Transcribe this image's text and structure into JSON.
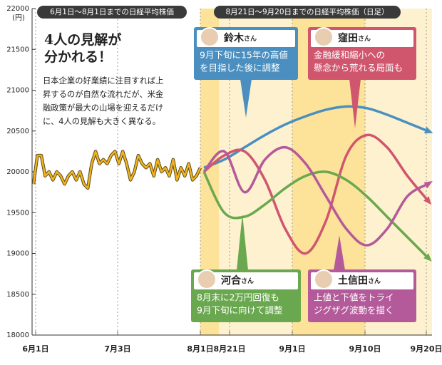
{
  "chart_data": {
    "type": "line",
    "y_unit": "(円)",
    "ylim": [
      18000,
      22000
    ],
    "yticks": [
      18000,
      18500,
      19000,
      19500,
      20000,
      20500,
      21000,
      21500,
      22000
    ],
    "xticks": [
      "6月1日",
      "7月3日",
      "8月1日",
      "8月21日",
      "9月1日",
      "9月10日",
      "9月20日"
    ],
    "header_left": "6月1日～8月1日までの日経平均株価",
    "header_right": "8月21日～9月20日までの日経平均株価（日足）",
    "title_lines": [
      "4人の見解が",
      "分かれる！"
    ],
    "body_lines": [
      "日本企業の好業績に注目すれば上",
      "昇するのが自然な流れだが、米金",
      "融政策が最大の山場を迎えるだけ",
      "に、4人の見解も大きく異なる。"
    ],
    "history": {
      "color": "#f2b51c",
      "values": [
        19850,
        20200,
        20200,
        19950,
        20000,
        19900,
        20000,
        19950,
        19850,
        19950,
        20000,
        19900,
        20000,
        19850,
        19800,
        20100,
        20250,
        20100,
        20150,
        20100,
        20200,
        20250,
        20100,
        20250,
        20100,
        19900,
        20000,
        20200,
        20100,
        20050,
        20100,
        19950,
        20150,
        20000,
        20050,
        19950,
        20150,
        19900,
        20050,
        19950,
        20100,
        19900,
        19950,
        20050
      ]
    },
    "series": [
      {
        "name": "鈴木",
        "color": "#4a8fc0",
        "values": [
          20050,
          20150,
          20300,
          20450,
          20580,
          20680,
          20760,
          20800,
          20780,
          20700,
          20600,
          20500
        ]
      },
      {
        "name": "窪田",
        "color": "#d0566e",
        "values": [
          20000,
          20200,
          20250,
          19900,
          19300,
          19000,
          19400,
          20200,
          20450,
          20300,
          19950,
          19650
        ]
      },
      {
        "name": "河合",
        "color": "#6aa84f",
        "values": [
          20000,
          19500,
          19450,
          19600,
          19800,
          19950,
          20000,
          19900,
          19700,
          19450,
          19200,
          18950
        ]
      },
      {
        "name": "土信田",
        "color": "#b45a9a",
        "values": [
          20000,
          20250,
          19750,
          20150,
          20300,
          20100,
          19700,
          19300,
          19100,
          19300,
          19700,
          19850
        ]
      }
    ],
    "annotations": [
      {
        "suffix": "さん",
        "lines": [
          "9月下旬に15年の高値",
          "を目指した後に調整"
        ]
      },
      {
        "suffix": "さん",
        "lines": [
          "金融緩和縮小への",
          "懸念から荒れる局面も"
        ]
      },
      {
        "suffix": "さん",
        "lines": [
          "8月末に2万円回復も",
          "9月下旬に向けて調整"
        ]
      },
      {
        "suffix": "さん",
        "lines": [
          "上値と下値をトライ",
          "ジグザグ波動を描く"
        ]
      }
    ]
  }
}
